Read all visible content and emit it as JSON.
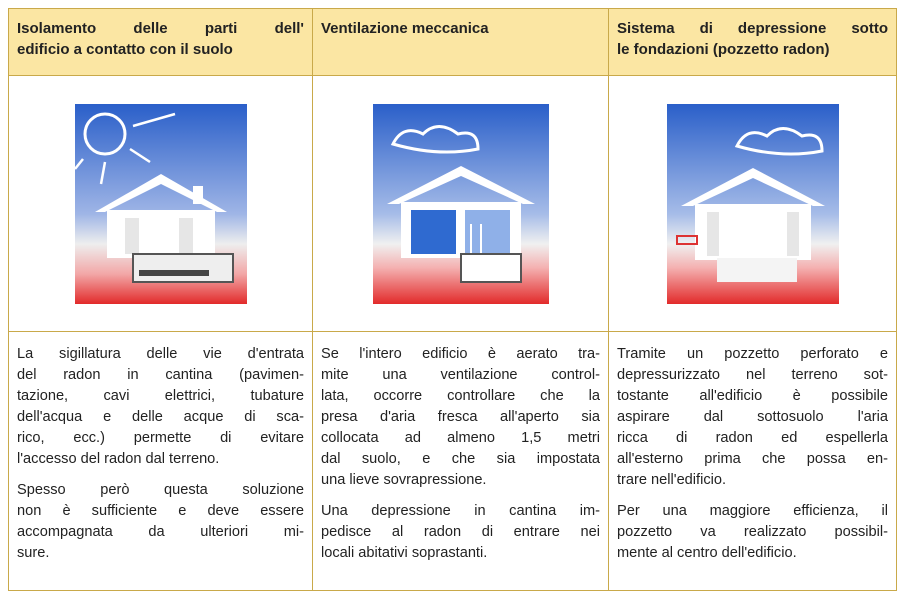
{
  "table": {
    "columns": [
      {
        "header": [
          "Isolamento delle parti dell'",
          "edificio a contatto con il suolo"
        ],
        "paragraphs": [
          [
            "La sigillatura delle vie d'entrata",
            "del radon in cantina (pavimen-",
            "tazione, cavi elettrici, tubature",
            "dell'acqua e delle acque di sca-",
            "rico, ecc.) permette di evitare",
            "l'accesso del radon dal terreno."
          ],
          [
            "Spesso però questa soluzione",
            "non è sufficiente e deve essere",
            "accompagnata da ulteriori mi-",
            "sure."
          ]
        ]
      },
      {
        "header": [
          "Ventilazione meccanica"
        ],
        "paragraphs": [
          [
            "Se l'intero edificio è aerato tra-",
            "mite una ventilazione control-",
            "lata, occorre controllare che la",
            "presa d'aria fresca all'aperto sia",
            "collocata ad almeno 1,5 metri",
            "dal suolo, e che sia impostata",
            "una lieve sovrapressione."
          ],
          [
            "Una depressione in cantina im-",
            "pedisce al radon di entrare nei",
            "locali abitativi soprastanti."
          ]
        ]
      },
      {
        "header": [
          "Sistema di depressione sotto",
          "le fondazioni (pozzetto radon)"
        ],
        "paragraphs": [
          [
            "Tramite un pozzetto perforato e",
            "depressurizzato nel terreno sot-",
            "tostante all'edificio è possibile",
            "aspirare dal sottosuolo l'aria",
            "ricca di radon ed espellerla",
            "all'esterno prima che possa en-",
            "trare nell'edificio."
          ],
          [
            "Per una maggiore efficienza, il",
            "pozzetto va realizzato possibil-",
            "mente al centro dell'edificio."
          ]
        ]
      }
    ]
  }
}
